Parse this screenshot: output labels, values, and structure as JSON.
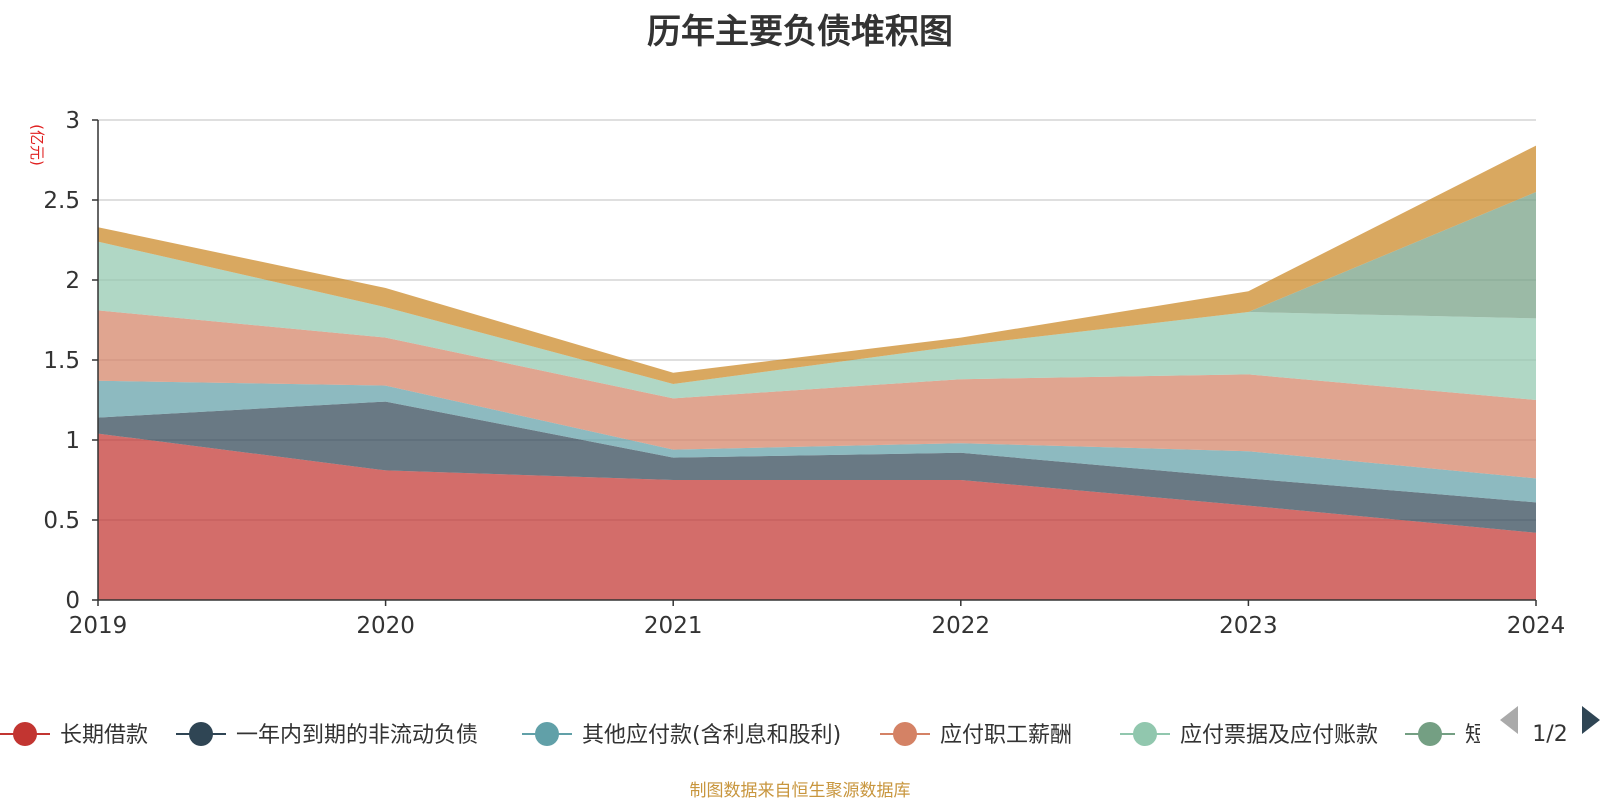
{
  "title": "历年主要负债堆积图",
  "footer": "制图数据来自恒生聚源数据库",
  "pager": {
    "text": "1/2"
  },
  "chart_data": {
    "type": "area",
    "stacked": true,
    "x": [
      "2019",
      "2020",
      "2021",
      "2022",
      "2023",
      "2024"
    ],
    "ylabel": "(亿元)",
    "ylim": [
      0,
      3
    ],
    "yticks": [
      "0",
      "0.5",
      "1",
      "1.5",
      "2",
      "2.5",
      "3"
    ],
    "grid": true,
    "legend_position": "bottom",
    "series": [
      {
        "name": "长期借款",
        "color": "#c23531",
        "values": [
          1.04,
          0.81,
          0.75,
          0.75,
          0.59,
          0.42
        ]
      },
      {
        "name": "一年内到期的非流动负债",
        "color": "#2f4554",
        "values": [
          0.1,
          0.43,
          0.14,
          0.17,
          0.17,
          0.19
        ]
      },
      {
        "name": "其他应付款(含利息和股利)",
        "color": "#61a0a8",
        "values": [
          0.23,
          0.1,
          0.05,
          0.06,
          0.17,
          0.15
        ]
      },
      {
        "name": "应付职工薪酬",
        "color": "#d48265",
        "values": [
          0.44,
          0.3,
          0.32,
          0.4,
          0.48,
          0.49
        ]
      },
      {
        "name": "应付票据及应付账款",
        "color": "#91c7ae",
        "values": [
          0.43,
          0.19,
          0.09,
          0.21,
          0.39,
          0.51
        ]
      },
      {
        "name": "短期借款",
        "color": "#749f83",
        "values": [
          0.0,
          0.0,
          0.0,
          0.0,
          0.0,
          0.79
        ]
      },
      {
        "name": "",
        "color": "#ca8622",
        "values": [
          0.09,
          0.12,
          0.07,
          0.05,
          0.13,
          0.29
        ]
      }
    ]
  }
}
